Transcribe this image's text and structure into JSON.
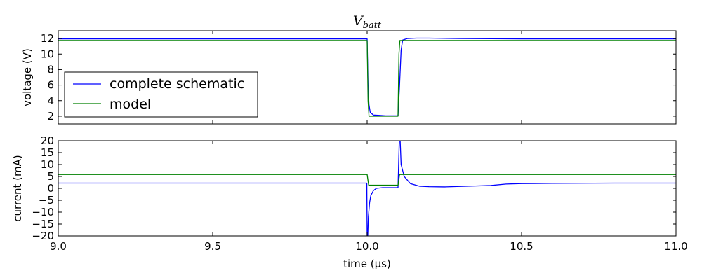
{
  "chart_data": [
    {
      "type": "line",
      "title": "V_batt",
      "title_main": "V",
      "title_sub": "batt",
      "xlabel": "",
      "ylabel": "voltage (V)",
      "xlim": [
        9.0,
        11.0
      ],
      "ylim": [
        1,
        13
      ],
      "yticks": [
        2,
        4,
        6,
        8,
        10,
        12
      ],
      "legend": {
        "placement": "lower-left",
        "entries": [
          "complete schematic",
          "model"
        ]
      },
      "grid": false,
      "series": [
        {
          "name": "complete schematic",
          "color": "#0000ff",
          "x": [
            9.0,
            10.0,
            10.003,
            10.006,
            10.01,
            10.02,
            10.04,
            10.06,
            10.1,
            10.105,
            10.11,
            10.115,
            10.13,
            10.16,
            10.2,
            10.3,
            10.5,
            11.0
          ],
          "y": [
            11.95,
            11.95,
            6.0,
            3.5,
            2.5,
            2.15,
            2.1,
            2.05,
            2.05,
            6.0,
            10.5,
            11.8,
            12.0,
            12.05,
            12.05,
            12.0,
            11.95,
            11.95
          ]
        },
        {
          "name": "model",
          "color": "#008000",
          "x": [
            9.0,
            10.0,
            10.003,
            10.006,
            10.1,
            10.103,
            10.106,
            11.0
          ],
          "y": [
            11.75,
            11.75,
            4.0,
            2.0,
            2.0,
            10.0,
            11.75,
            11.75
          ]
        }
      ]
    },
    {
      "type": "line",
      "title": "",
      "xlabel": "time (µs)",
      "ylabel": "current (mA)",
      "xlim": [
        9.0,
        11.0
      ],
      "ylim": [
        -20,
        20
      ],
      "xticks": [
        "9.0",
        "9.5",
        "10.0",
        "10.5",
        "11.0"
      ],
      "yticks": [
        -20,
        -15,
        -10,
        -5,
        0,
        5,
        10,
        15,
        20
      ],
      "grid": false,
      "series": [
        {
          "name": "complete schematic",
          "color": "#0000ff",
          "x": [
            9.0,
            9.999,
            10.0,
            10.002,
            10.004,
            10.008,
            10.012,
            10.02,
            10.03,
            10.05,
            10.1,
            10.104,
            10.107,
            10.11,
            10.12,
            10.14,
            10.17,
            10.2,
            10.25,
            10.3,
            10.35,
            10.4,
            10.45,
            10.5,
            10.6,
            10.8,
            11.0
          ],
          "y": [
            2.2,
            2.2,
            -20,
            -20,
            -12,
            -6,
            -3,
            -1,
            0.0,
            0.3,
            0.3,
            20,
            20,
            10,
            5,
            2,
            0.9,
            0.7,
            0.6,
            0.8,
            1.0,
            1.2,
            1.8,
            2.0,
            2.1,
            2.2,
            2.2
          ]
        },
        {
          "name": "model",
          "color": "#008000",
          "x": [
            9.0,
            10.0,
            10.005,
            10.1,
            10.105,
            11.0
          ],
          "y": [
            5.8,
            5.8,
            1.3,
            1.3,
            5.8,
            5.8
          ]
        }
      ]
    }
  ]
}
